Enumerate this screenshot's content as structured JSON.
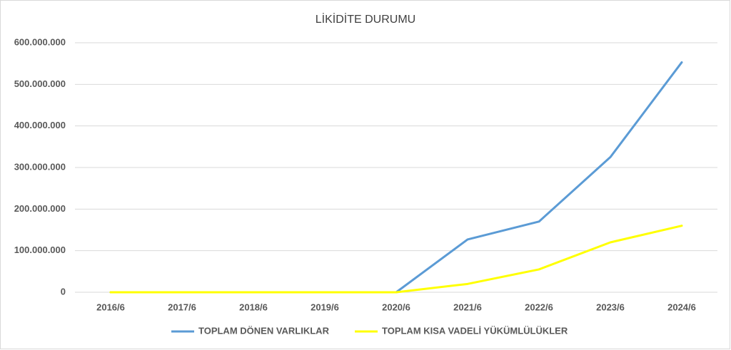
{
  "chart_data": {
    "type": "line",
    "title": "LİKİDİTE DURUMU",
    "categories": [
      "2016/6",
      "2017/6",
      "2018/6",
      "2019/6",
      "2020/6",
      "2021/6",
      "2022/6",
      "2023/6",
      "2024/6"
    ],
    "series": [
      {
        "name": "TOPLAM DÖNEN VARLIKLAR",
        "color": "#5b9bd5",
        "values": [
          0,
          0,
          0,
          0,
          0,
          127000000,
          170000000,
          325000000,
          553000000
        ]
      },
      {
        "name": "TOPLAM KISA VADELİ YÜKÜMLÜLÜKLER",
        "color": "#ffff00",
        "values": [
          0,
          0,
          0,
          0,
          0,
          20000000,
          55000000,
          120000000,
          160000000
        ]
      }
    ],
    "ylim": [
      0,
      600000000
    ],
    "yticks": [
      0,
      {
        "value": 100000000,
        "label": "100.000.000"
      },
      {
        "value": 200000000,
        "label": "200.000.000"
      },
      {
        "value": 300000000,
        "label": "300.000.000"
      },
      {
        "value": 400000000,
        "label": "400.000.000"
      },
      {
        "value": 500000000,
        "label": "500.000.000"
      },
      {
        "value": 600000000,
        "label": "600.000.000"
      }
    ],
    "grid": true,
    "legend": "bottom"
  }
}
